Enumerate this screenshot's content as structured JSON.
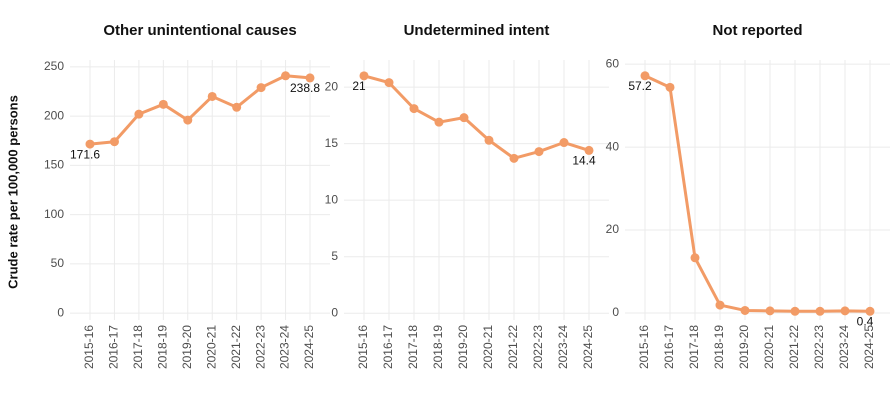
{
  "ylabel": "Crude rate per 100,000 persons",
  "chart_data": [
    {
      "type": "line",
      "title": "Other unintentional causes",
      "categories": [
        "2015-16",
        "2016-17",
        "2017-18",
        "2018-19",
        "2019-20",
        "2020-21",
        "2021-22",
        "2022-23",
        "2023-24",
        "2024-25"
      ],
      "series": [
        {
          "color": "#f29b66",
          "values": [
            171.6,
            174,
            202,
            212,
            196,
            220,
            209,
            229,
            241,
            238.8
          ]
        }
      ],
      "ylim": [
        -7,
        257
      ],
      "yticks": [
        0,
        50,
        100,
        150,
        200,
        250
      ],
      "grid": true
    },
    {
      "type": "line",
      "title": "Undetermined intent",
      "categories": [
        "2015-16",
        "2016-17",
        "2017-18",
        "2018-19",
        "2019-20",
        "2020-21",
        "2021-22",
        "2022-23",
        "2023-24",
        "2024-25"
      ],
      "series": [
        {
          "color": "#f29b66",
          "values": [
            21,
            20.4,
            18.1,
            16.9,
            17.3,
            15.3,
            13.7,
            14.3,
            15.1,
            14.4
          ]
        }
      ],
      "ylim": [
        -0.6,
        22.4
      ],
      "yticks": [
        0,
        5,
        10,
        15,
        20
      ],
      "grid": true
    },
    {
      "type": "line",
      "title": "Not reported",
      "categories": [
        "2015-16",
        "2016-17",
        "2017-18",
        "2018-19",
        "2019-20",
        "2020-21",
        "2021-22",
        "2022-23",
        "2023-24",
        "2024-25"
      ],
      "series": [
        {
          "color": "#f29b66",
          "values": [
            57.2,
            54.4,
            13.3,
            1.9,
            0.6,
            0.5,
            0.4,
            0.4,
            0.5,
            0.4
          ]
        }
      ],
      "ylim": [
        -1.7,
        61
      ],
      "yticks": [
        0,
        20,
        40,
        60
      ],
      "grid": true
    }
  ]
}
